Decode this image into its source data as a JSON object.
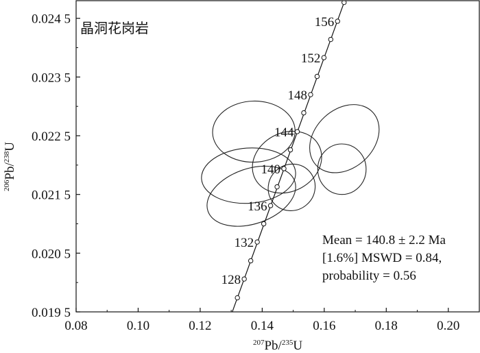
{
  "chart_data": {
    "type": "scatter",
    "title": "晶洞花岗岩",
    "xlabel": {
      "sup1": "207",
      "base1": "Pb/",
      "sup2": "235",
      "base2": "U"
    },
    "ylabel": {
      "sup1": "206",
      "base1": "Pb/",
      "sup2": "238",
      "base2": "U"
    },
    "xlim": [
      0.08,
      0.21
    ],
    "ylim": [
      0.0195,
      0.0248
    ],
    "x_ticks": [
      {
        "value": 0.08,
        "label": "0.08"
      },
      {
        "value": 0.1,
        "label": "0.10"
      },
      {
        "value": 0.12,
        "label": "0.12"
      },
      {
        "value": 0.14,
        "label": "0.14"
      },
      {
        "value": 0.16,
        "label": "0.16"
      },
      {
        "value": 0.18,
        "label": "0.18"
      },
      {
        "value": 0.2,
        "label": "0.20"
      }
    ],
    "y_ticks": [
      {
        "value": 0.0195,
        "label": "0.019 5"
      },
      {
        "value": 0.0205,
        "label": "0.020 5"
      },
      {
        "value": 0.0215,
        "label": "0.021 5"
      },
      {
        "value": 0.0225,
        "label": "0.022 5"
      },
      {
        "value": 0.0235,
        "label": "0.023 5"
      },
      {
        "value": 0.0245,
        "label": "0.024 5"
      }
    ],
    "concordia_points": [
      {
        "age": 126,
        "x": 0.132,
        "y": 0.01974
      },
      {
        "age": 128,
        "x": 0.1342,
        "y": 0.02006
      },
      {
        "age": 130,
        "x": 0.1363,
        "y": 0.02037
      },
      {
        "age": 132,
        "x": 0.1384,
        "y": 0.02069
      },
      {
        "age": 134,
        "x": 0.1405,
        "y": 0.021
      },
      {
        "age": 136,
        "x": 0.1427,
        "y": 0.02131
      },
      {
        "age": 138,
        "x": 0.1448,
        "y": 0.02163
      },
      {
        "age": 140,
        "x": 0.147,
        "y": 0.02194
      },
      {
        "age": 142,
        "x": 0.1491,
        "y": 0.02226
      },
      {
        "age": 144,
        "x": 0.1513,
        "y": 0.02257
      },
      {
        "age": 146,
        "x": 0.1534,
        "y": 0.02289
      },
      {
        "age": 148,
        "x": 0.1556,
        "y": 0.0232
      },
      {
        "age": 150,
        "x": 0.1577,
        "y": 0.02351
      },
      {
        "age": 152,
        "x": 0.1599,
        "y": 0.02383
      },
      {
        "age": 154,
        "x": 0.1621,
        "y": 0.02414
      },
      {
        "age": 156,
        "x": 0.1643,
        "y": 0.02445
      },
      {
        "age": 158,
        "x": 0.1664,
        "y": 0.02477
      }
    ],
    "age_labels": [
      {
        "age": "156",
        "value": 156
      },
      {
        "age": "152",
        "value": 152
      },
      {
        "age": "148",
        "value": 148
      },
      {
        "age": "144",
        "value": 144
      },
      {
        "age": "140",
        "value": 140
      },
      {
        "age": "136",
        "value": 136
      },
      {
        "age": "132",
        "value": 132
      },
      {
        "age": "128",
        "value": 128
      }
    ],
    "error_ellipses": [
      {
        "cx": 0.1356,
        "cy": 0.02182,
        "rx": 0.0152,
        "ry": 0.00047,
        "rot": -4
      },
      {
        "cx": 0.1373,
        "cy": 0.02257,
        "rx": 0.0133,
        "ry": 0.00052,
        "rot": -2
      },
      {
        "cx": 0.1365,
        "cy": 0.02147,
        "rx": 0.0148,
        "ry": 0.00047,
        "rot": -19
      },
      {
        "cx": 0.148,
        "cy": 0.02205,
        "rx": 0.0116,
        "ry": 0.0005,
        "rot": -28
      },
      {
        "cx": 0.1495,
        "cy": 0.02162,
        "rx": 0.0077,
        "ry": 0.00039,
        "rot": -40
      },
      {
        "cx": 0.1665,
        "cy": 0.02245,
        "rx": 0.0125,
        "ry": 0.0005,
        "rot": -43
      },
      {
        "cx": 0.1657,
        "cy": 0.02193,
        "rx": 0.0078,
        "ry": 0.00043,
        "rot": 0
      }
    ],
    "statistics": {
      "line1": "Mean = 140.8 ± 2.2 Ma",
      "line2": "[1.6%] MSWD = 0.84,",
      "line3": "probability = 0.56"
    }
  }
}
